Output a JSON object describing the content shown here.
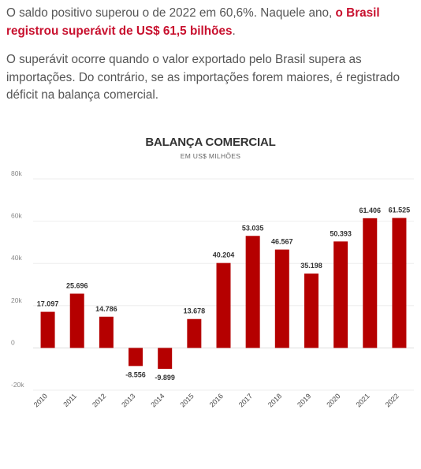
{
  "article": {
    "p1_text": "O saldo positivo superou o de 2022 em 60,6%. Naquele ano, ",
    "p1_highlight": "o Brasil registrou superávit de US$ 61,5 bilhões",
    "p1_end": ".",
    "p2_text": "O superávit ocorre quando o valor exportado pelo Brasil supera as importações. Do contrário, se as importações forem maiores, é registrado déficit na balança comercial.",
    "highlight_color": "#c8102e"
  },
  "chart_data": {
    "type": "bar",
    "title": "BALANÇA COMERCIAL",
    "subtitle": "EM US$ MILHÕES",
    "categories": [
      "2010",
      "2011",
      "2012",
      "2013",
      "2014",
      "2015",
      "2016",
      "2017",
      "2018",
      "2019",
      "2020",
      "2021",
      "2022"
    ],
    "values": [
      17097,
      25696,
      14786,
      -8556,
      -9899,
      13678,
      40204,
      53035,
      46567,
      35198,
      50393,
      61406,
      61525
    ],
    "data_labels": [
      "17.097",
      "25.696",
      "14.786",
      "-8.556",
      "-9.899",
      "13.678",
      "40.204",
      "53.035",
      "46.567",
      "35.198",
      "50.393",
      "61.406",
      "61.525"
    ],
    "yticks": [
      80000,
      60000,
      40000,
      20000,
      0,
      -20000
    ],
    "ytick_labels": [
      "80k",
      "60k",
      "40k",
      "20k",
      "0",
      "-20k"
    ],
    "ylim": [
      -20000,
      80000
    ],
    "grid": true,
    "bar_color": "#b50000"
  }
}
